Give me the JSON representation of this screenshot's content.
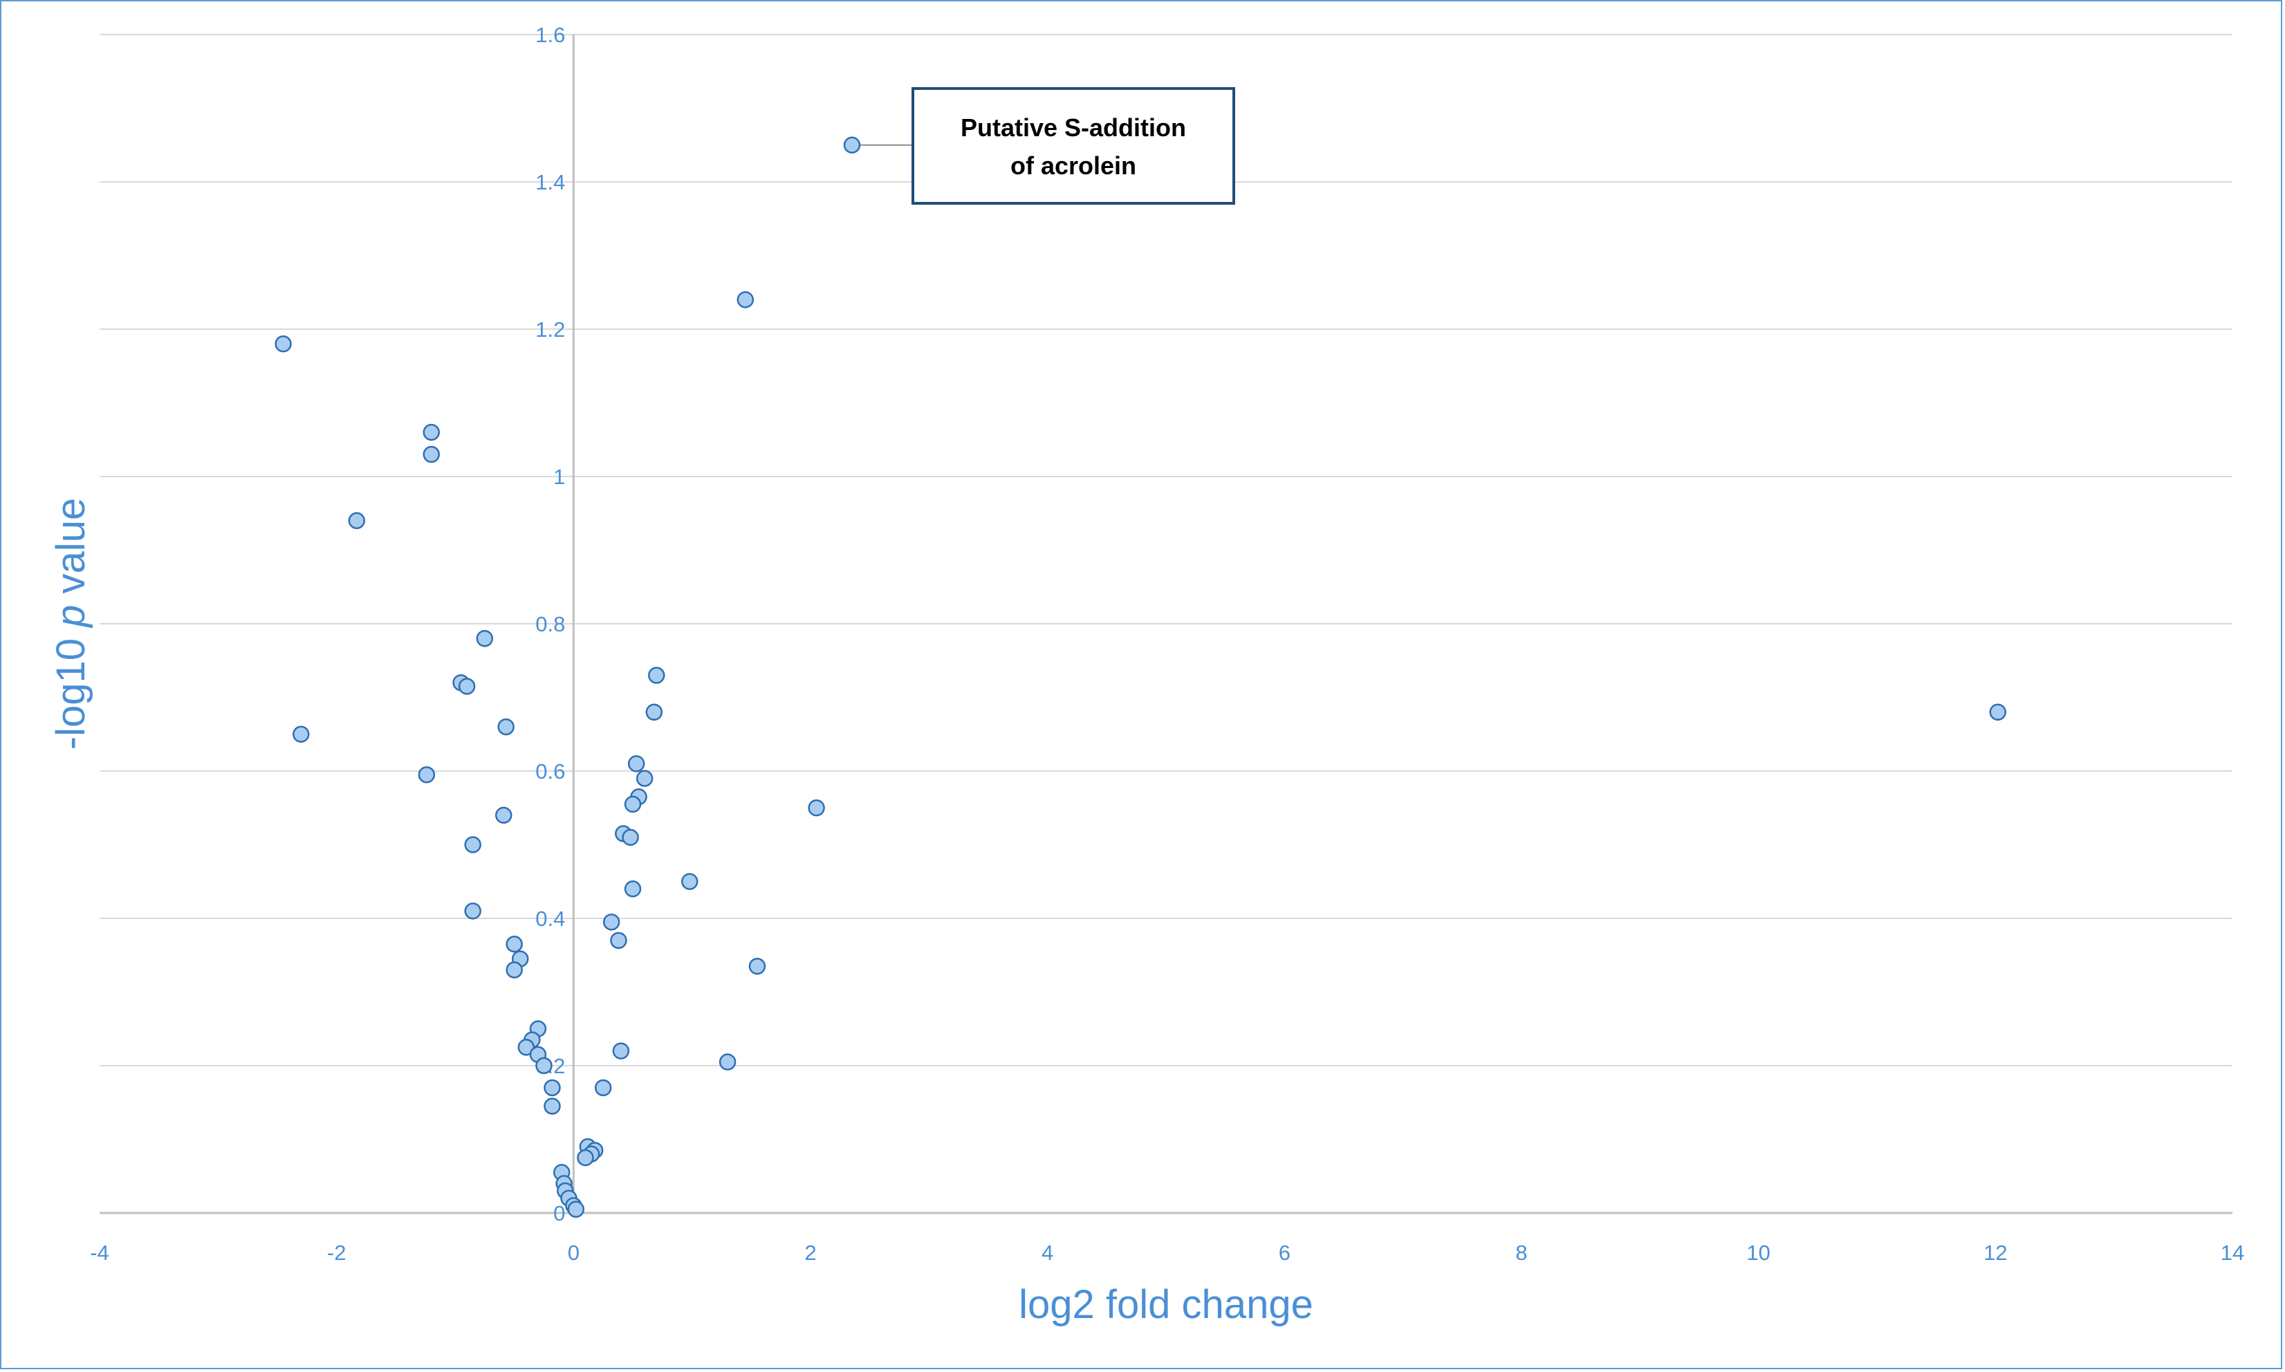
{
  "colors": {
    "frame": "#5b9bd5",
    "gridline": "#d9d9d9",
    "axis_line": "#bfbfbf",
    "label_text": "#4a8fd6",
    "point_fill": "#a9cdf0",
    "point_stroke": "#2f6fb0",
    "annotation_border": "#1f4e79"
  },
  "chart_data": {
    "type": "scatter",
    "xlabel": "log2 fold change",
    "ylabel_prefix": "-log10 ",
    "ylabel_italic": "p",
    "ylabel_suffix": " value",
    "xlim": [
      -4,
      14
    ],
    "ylim": [
      0,
      1.6
    ],
    "xticks": [
      -4,
      -2,
      0,
      2,
      4,
      6,
      8,
      10,
      12,
      14
    ],
    "yticks": [
      0,
      0.2,
      0.4,
      0.6,
      0.8,
      1,
      1.2,
      1.4,
      1.6
    ],
    "xtick_labels": [
      "-4",
      "-2",
      "0",
      "2",
      "4",
      "6",
      "8",
      "10",
      "12",
      "14"
    ],
    "ytick_labels": [
      "0",
      "0.2",
      "0.4",
      "0.6",
      "0.8",
      "1",
      "1.2",
      "1.4",
      "1.6"
    ],
    "grid": "horizontal",
    "annotation": {
      "line1": "Putative S-addition",
      "line2": "of acrolein",
      "point": [
        2.35,
        1.45
      ]
    },
    "points": [
      [
        2.35,
        1.45
      ],
      [
        1.45,
        1.24
      ],
      [
        -2.45,
        1.18
      ],
      [
        -1.2,
        1.06
      ],
      [
        -1.2,
        1.03
      ],
      [
        -1.83,
        0.94
      ],
      [
        -0.75,
        0.78
      ],
      [
        -0.95,
        0.72
      ],
      [
        -0.9,
        0.715
      ],
      [
        0.7,
        0.73
      ],
      [
        0.68,
        0.68
      ],
      [
        12.02,
        0.68
      ],
      [
        -2.3,
        0.65
      ],
      [
        -0.57,
        0.66
      ],
      [
        0.53,
        0.61
      ],
      [
        0.6,
        0.59
      ],
      [
        -1.24,
        0.595
      ],
      [
        0.55,
        0.565
      ],
      [
        0.5,
        0.555
      ],
      [
        2.05,
        0.55
      ],
      [
        -0.59,
        0.54
      ],
      [
        0.42,
        0.515
      ],
      [
        0.48,
        0.51
      ],
      [
        -0.85,
        0.5
      ],
      [
        0.98,
        0.45
      ],
      [
        0.5,
        0.44
      ],
      [
        -0.85,
        0.41
      ],
      [
        0.32,
        0.395
      ],
      [
        0.38,
        0.37
      ],
      [
        -0.5,
        0.365
      ],
      [
        -0.45,
        0.345
      ],
      [
        -0.5,
        0.33
      ],
      [
        1.55,
        0.335
      ],
      [
        -0.3,
        0.25
      ],
      [
        -0.35,
        0.235
      ],
      [
        -0.4,
        0.225
      ],
      [
        -0.3,
        0.215
      ],
      [
        -0.25,
        0.2
      ],
      [
        0.4,
        0.22
      ],
      [
        1.3,
        0.205
      ],
      [
        -0.18,
        0.17
      ],
      [
        0.25,
        0.17
      ],
      [
        -0.18,
        0.145
      ],
      [
        0.12,
        0.09
      ],
      [
        0.18,
        0.085
      ],
      [
        0.15,
        0.08
      ],
      [
        0.1,
        0.075
      ],
      [
        -0.1,
        0.055
      ],
      [
        -0.08,
        0.04
      ],
      [
        -0.07,
        0.03
      ],
      [
        -0.04,
        0.02
      ],
      [
        0,
        0.01
      ],
      [
        0.02,
        0.005
      ]
    ]
  }
}
